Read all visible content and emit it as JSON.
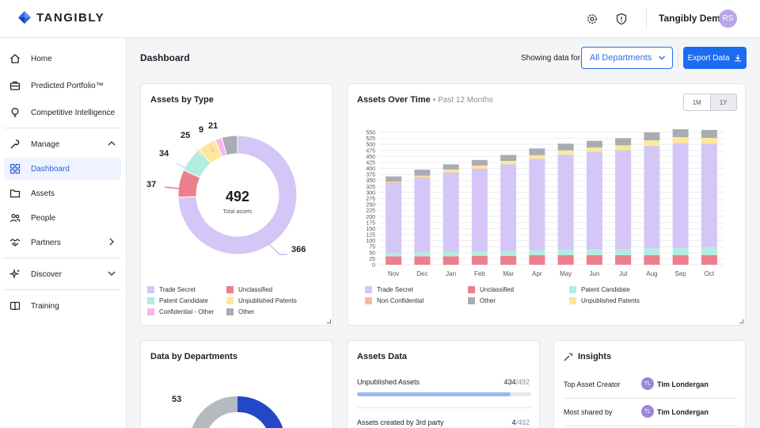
{
  "brand": {
    "name": "TANGIBLY"
  },
  "header": {
    "user_name": "Tangibly Demo",
    "user_initials": "RS"
  },
  "sidebar": {
    "items": [
      {
        "label": "Home"
      },
      {
        "label": "Predicted Portfolio™"
      },
      {
        "label": "Competitive Intelligence"
      },
      {
        "label": "Manage"
      },
      {
        "label": "Dashboard"
      },
      {
        "label": "Assets"
      },
      {
        "label": "People"
      },
      {
        "label": "Partners"
      },
      {
        "label": "Discover"
      },
      {
        "label": "Training"
      }
    ]
  },
  "main": {
    "title": "Dashboard",
    "showing_label": "Showing data for",
    "department_select": "All Departments",
    "export_label": "Export Data"
  },
  "colors": {
    "trade_secret": "#d4c6f7",
    "unclassified": "#ec7f8c",
    "patent_candidate": "#b3ece0",
    "unpublished_patents": "#fde79a",
    "confidential_other": "#f7b6ec",
    "other": "#a8adb4",
    "non_confidential": "#f9bd95",
    "accent": "#1c6cf0"
  },
  "assets_by_type": {
    "title": "Assets by Type",
    "total": "492",
    "total_label": "Total assets",
    "slices": [
      {
        "label": "Trade Secret",
        "value": 366,
        "color": "#d4c6f7"
      },
      {
        "label": "Unclassified",
        "value": 37,
        "color": "#ec7f8c"
      },
      {
        "label": "Patent Candidate",
        "value": 34,
        "color": "#b3ece0"
      },
      {
        "label": "Unpublished Patents",
        "value": 25,
        "color": "#fde79a"
      },
      {
        "label": "Confidential - Other",
        "value": 9,
        "color": "#f7b6ec"
      },
      {
        "label": "Other",
        "value": 21,
        "color": "#a8adb4"
      }
    ],
    "slice_labels": {
      "trade_secret": "366",
      "unclassified": "37",
      "patent_candidate": "34",
      "unpublished": "25",
      "confidential": "9",
      "other": "21"
    },
    "legend": [
      {
        "label": "Trade Secret",
        "color": "#d4c6f7"
      },
      {
        "label": "Unclassified",
        "color": "#ec7f8c"
      },
      {
        "label": "Patent Candidate",
        "color": "#b3ece0"
      },
      {
        "label": "Unpublished Patents",
        "color": "#fde79a"
      },
      {
        "label": "Confidential - Other",
        "color": "#f7b6ec"
      },
      {
        "label": "Other",
        "color": "#a8adb4"
      }
    ]
  },
  "assets_over_time": {
    "title": "Assets Over Time",
    "subtitle": "• Past 12 Months",
    "toggle": {
      "opt1": "1M",
      "opt2": "1Y"
    },
    "legend": [
      {
        "label": "Trade Secret",
        "color": "#d4c6f7"
      },
      {
        "label": "Unclassified",
        "color": "#ec7f8c"
      },
      {
        "label": "Patent Candidate",
        "color": "#b3ece0"
      },
      {
        "label": "Non Confidential",
        "color": "#f9bd95"
      },
      {
        "label": "Other",
        "color": "#a8adb4"
      },
      {
        "label": "Unpublished Patents",
        "color": "#fde79a"
      }
    ]
  },
  "chart_data": [
    {
      "type": "pie",
      "title": "Assets by Type",
      "labels": [
        "Trade Secret",
        "Unclassified",
        "Patent Candidate",
        "Unpublished Patents",
        "Confidential - Other",
        "Other"
      ],
      "values": [
        366,
        37,
        34,
        25,
        9,
        21
      ],
      "total": 492
    },
    {
      "type": "bar",
      "stacked": true,
      "title": "Assets Over Time",
      "categories": [
        "Nov",
        "Dec",
        "Jan",
        "Feb",
        "Mar",
        "Apr",
        "May",
        "Jun",
        "Jul",
        "Aug",
        "Sep",
        "Oct"
      ],
      "ylim": [
        0,
        550
      ],
      "yticks": [
        "0",
        "25",
        "50",
        "75",
        "100",
        "125",
        "150",
        "175",
        "200",
        "225",
        "250",
        "275",
        "300",
        "325",
        "350",
        "375",
        "400",
        "425",
        "450",
        "475",
        "500",
        "525",
        "550"
      ],
      "grid": true,
      "series": [
        {
          "name": "Unclassified",
          "color": "#ec7f8c",
          "values": [
            35,
            35,
            35,
            37,
            37,
            40,
            40,
            40,
            40,
            40,
            40,
            40
          ]
        },
        {
          "name": "Patent Candidate",
          "color": "#b3ece0",
          "values": [
            15,
            17,
            18,
            18,
            20,
            20,
            22,
            24,
            26,
            28,
            30,
            33
          ]
        },
        {
          "name": "Trade Secret",
          "color": "#d4c6f7",
          "values": [
            288,
            310,
            330,
            345,
            360,
            380,
            395,
            405,
            410,
            425,
            435,
            430
          ]
        },
        {
          "name": "Non Confidential",
          "color": "#f9bd95",
          "values": [
            5,
            3,
            2,
            0,
            0,
            0,
            0,
            0,
            0,
            0,
            0,
            0
          ]
        },
        {
          "name": "Unpublished Patents",
          "color": "#fde79a",
          "values": [
            2,
            5,
            10,
            12,
            14,
            15,
            18,
            18,
            20,
            24,
            25,
            24
          ]
        },
        {
          "name": "Other",
          "color": "#a8adb4",
          "values": [
            22,
            25,
            22,
            23,
            25,
            28,
            28,
            28,
            30,
            33,
            33,
            33
          ]
        }
      ]
    }
  ],
  "data_by_departments": {
    "title": "Data by Departments",
    "label_visible": "53"
  },
  "assets_data": {
    "title": "Assets Data",
    "rows": [
      {
        "label": "Unpublished Assets",
        "value": "434",
        "total": "/492",
        "progress": 0.882
      },
      {
        "label": "Assets created by 3rd party",
        "value": "4",
        "total": "/492",
        "progress": 0.008
      }
    ]
  },
  "insights": {
    "title": "Insights",
    "rows": [
      {
        "label": "Top Asset Creator",
        "initials": "TL",
        "name": "Tim Londergan"
      },
      {
        "label": "Most shared by",
        "initials": "TL",
        "name": "Tim Londergan"
      }
    ]
  }
}
